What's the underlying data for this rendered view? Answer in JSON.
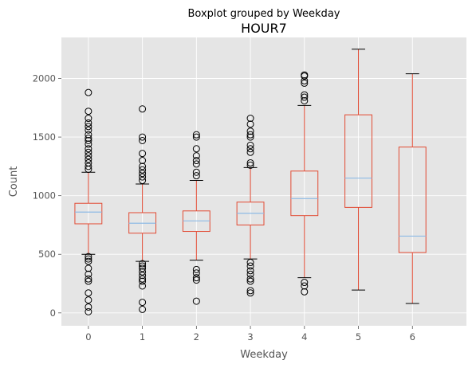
{
  "chart_data": {
    "type": "box",
    "suptitle": "Boxplot grouped by Weekday",
    "title": "HOUR7",
    "xlabel": "Weekday",
    "ylabel": "Count",
    "ylim": [
      -110,
      2350
    ],
    "yticks": [
      0,
      500,
      1000,
      1500,
      2000
    ],
    "grid": true,
    "colors": {
      "background": "#E5E5E5",
      "grid": "#FFFFFF",
      "box": "#E24A33",
      "median": "#8EBAE5",
      "flier": "#000000",
      "text": "#555555"
    },
    "categories": [
      "0",
      "1",
      "2",
      "3",
      "4",
      "5",
      "6"
    ],
    "boxes": [
      {
        "label": "0",
        "whislo": 500,
        "q1": 760,
        "med": 860,
        "q3": 935,
        "whishi": 1200,
        "fliers": [
          1880,
          1720,
          1660,
          1620,
          1590,
          1560,
          1520,
          1490,
          1470,
          1440,
          1400,
          1370,
          1340,
          1310,
          1280,
          1250,
          1225,
          480,
          460,
          440,
          380,
          330,
          290,
          270,
          170,
          110,
          50,
          10
        ]
      },
      {
        "label": "1",
        "whislo": 440,
        "q1": 680,
        "med": 765,
        "q3": 855,
        "whishi": 1100,
        "fliers": [
          1740,
          1500,
          1470,
          1360,
          1300,
          1250,
          1220,
          1190,
          1160,
          1130,
          420,
          400,
          380,
          350,
          320,
          290,
          270,
          230,
          90,
          30
        ]
      },
      {
        "label": "2",
        "whislo": 450,
        "q1": 695,
        "med": 785,
        "q3": 870,
        "whishi": 1130,
        "fliers": [
          1520,
          1500,
          1400,
          1340,
          1300,
          1270,
          1200,
          1170,
          370,
          340,
          300,
          280,
          100
        ]
      },
      {
        "label": "3",
        "whislo": 460,
        "q1": 750,
        "med": 850,
        "q3": 945,
        "whishi": 1240,
        "fliers": [
          1660,
          1610,
          1550,
          1520,
          1500,
          1430,
          1400,
          1370,
          1280,
          1260,
          430,
          400,
          360,
          330,
          290,
          270,
          190,
          170
        ]
      },
      {
        "label": "4",
        "whislo": 300,
        "q1": 830,
        "med": 975,
        "q3": 1210,
        "whishi": 1770,
        "fliers": [
          2030,
          2020,
          1980,
          1960,
          1860,
          1840,
          1810,
          260,
          230,
          180
        ]
      },
      {
        "label": "5",
        "whislo": 195,
        "q1": 900,
        "med": 1150,
        "q3": 1690,
        "whishi": 2250,
        "fliers": []
      },
      {
        "label": "6",
        "whislo": 80,
        "q1": 515,
        "med": 655,
        "q3": 1415,
        "whishi": 2040,
        "fliers": []
      }
    ]
  }
}
